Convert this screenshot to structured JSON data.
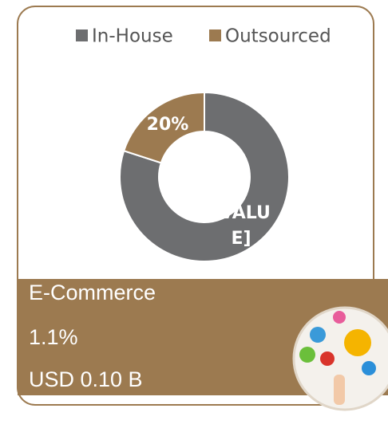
{
  "chart_data": {
    "type": "donut",
    "categories": [
      "In-House",
      "Outsourced"
    ],
    "values": [
      80,
      20
    ],
    "value_labels": [
      "[VALUE]",
      "20%"
    ],
    "colors": [
      "#6d6e70",
      "#9c7a50"
    ],
    "legend": "top"
  },
  "panel": {
    "title": "E-Commerce",
    "share": "1.1%",
    "value": "USD 0.10 B"
  }
}
